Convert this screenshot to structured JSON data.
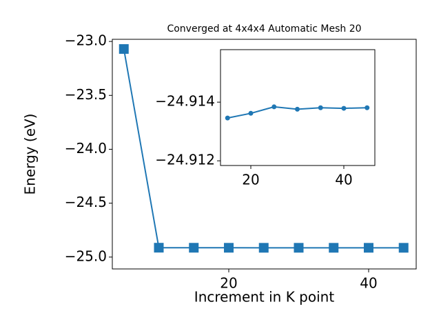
{
  "chart_data": [
    {
      "type": "line",
      "title": "Converged at 4x4x4 Automatic Mesh 20",
      "x_label": "Increment in K point",
      "y_label": "Energy (eV)",
      "x": [
        5,
        10,
        15,
        20,
        25,
        30,
        35,
        40,
        45
      ],
      "series": [
        {
          "color": "#1f77b4",
          "marker": "square",
          "values": [
            -23.07,
            -24.913,
            -24.91346,
            -24.91362,
            -24.91384,
            -24.91376,
            -24.91381,
            -24.91379,
            -24.91381
          ]
        }
      ],
      "xlim": [
        3.35,
        46.8
      ],
      "ylim": [
        -25.11,
        -22.98
      ],
      "xticks": [
        20,
        40
      ],
      "yticks": [
        {
          "value": -25.0,
          "label": "−25.0"
        },
        {
          "value": -24.5,
          "label": "−24.5"
        },
        {
          "value": -24.0,
          "label": "−24.0"
        },
        {
          "value": -23.5,
          "label": "−23.5"
        },
        {
          "value": -23.0,
          "label": "−23.0"
        }
      ]
    },
    {
      "type": "line",
      "x": [
        15,
        20,
        25,
        30,
        35,
        40,
        45
      ],
      "series": [
        {
          "color": "#1f77b4",
          "marker": "circle",
          "values": [
            -24.91346,
            -24.91362,
            -24.91384,
            -24.91376,
            -24.91381,
            -24.91379,
            -24.91381
          ]
        }
      ],
      "xlim": [
        13.48,
        46.67
      ],
      "ylim": [
        -24.91184,
        -24.91579
      ],
      "xticks": [
        20,
        40
      ],
      "yticks": [
        {
          "value": -24.912,
          "label": "−24.912"
        },
        {
          "value": -24.914,
          "label": "−24.914"
        }
      ]
    }
  ]
}
